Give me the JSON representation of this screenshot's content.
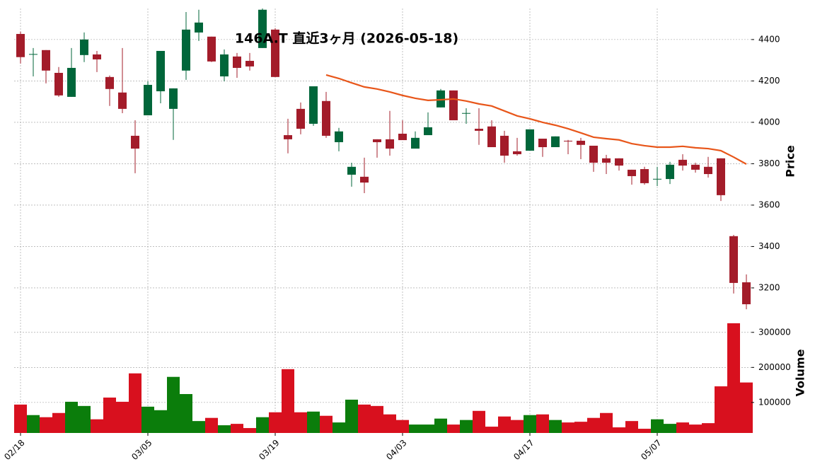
{
  "chart_data": {
    "type": "candlestick",
    "title": "146A.T 直近3ヶ月 (2026-05-18)",
    "categories": [
      "02/18",
      null,
      null,
      null,
      null,
      null,
      null,
      null,
      null,
      null,
      "03/05",
      null,
      null,
      null,
      null,
      null,
      null,
      null,
      null,
      null,
      "03/19",
      null,
      null,
      null,
      null,
      null,
      null,
      null,
      null,
      null,
      "04/03",
      null,
      null,
      null,
      null,
      null,
      null,
      null,
      null,
      null,
      "04/17",
      null,
      null,
      null,
      null,
      null,
      null,
      null,
      null,
      null,
      "05/07",
      null,
      null,
      null,
      null,
      null,
      null,
      null
    ],
    "open": [
      4427,
      4328,
      4349,
      4239,
      4123,
      4325,
      4328,
      4219,
      4144,
      3935,
      4034,
      4150,
      4065,
      4250,
      4434,
      4414,
      4222,
      4318,
      4297,
      4359,
      4448,
      3938,
      4065,
      3993,
      4103,
      3904,
      3747,
      3737,
      3918,
      3918,
      3945,
      3873,
      3938,
      4072,
      4154,
      4042,
      3969,
      3980,
      3935,
      3860,
      3863,
      3921,
      3880,
      3911,
      3911,
      3887,
      3826,
      3826,
      3771,
      3774,
      3726,
      3726,
      3819,
      3795,
      3785,
      3826,
      3450,
      3227
    ],
    "high": [
      4438,
      4359,
      4349,
      4267,
      4359,
      4434,
      4345,
      4226,
      4359,
      4010,
      4198,
      4345,
      4164,
      4533,
      4544,
      4414,
      4352,
      4335,
      4335,
      4550,
      4455,
      4017,
      4096,
      4174,
      4147,
      3973,
      3805,
      3829,
      3918,
      4055,
      4010,
      3956,
      4048,
      4161,
      4154,
      4068,
      4068,
      4010,
      3959,
      3925,
      3966,
      3921,
      3932,
      3915,
      3925,
      3887,
      3843,
      3826,
      3771,
      3785,
      3785,
      3809,
      3846,
      3805,
      3833,
      3826,
      3456,
      3265
    ],
    "low": [
      4284,
      4222,
      4188,
      4123,
      4123,
      4291,
      4243,
      4079,
      4044,
      3754,
      4034,
      4092,
      3915,
      4205,
      4393,
      4291,
      4198,
      4215,
      4250,
      4359,
      4219,
      3850,
      3942,
      3983,
      3925,
      3860,
      3689,
      3658,
      3829,
      3839,
      3914,
      3873,
      3938,
      4072,
      4010,
      3993,
      3891,
      3880,
      3805,
      3839,
      3863,
      3833,
      3880,
      3846,
      3822,
      3761,
      3750,
      3767,
      3699,
      3699,
      3692,
      3702,
      3767,
      3757,
      3733,
      3620,
      3173,
      3097
    ],
    "close": [
      4315,
      4330,
      4250,
      4130,
      4263,
      4400,
      4304,
      4161,
      4065,
      3873,
      4181,
      4345,
      4164,
      4448,
      4482,
      4294,
      4328,
      4263,
      4270,
      4544,
      4219,
      3918,
      3969,
      4174,
      3935,
      3956,
      3785,
      3709,
      3904,
      3873,
      3914,
      3925,
      3976,
      4154,
      4010,
      4045,
      3959,
      3880,
      3839,
      3846,
      3966,
      3880,
      3932,
      3908,
      3891,
      3805,
      3805,
      3791,
      3740,
      3706,
      3727,
      3795,
      3791,
      3771,
      3750,
      3648,
      3224,
      3121
    ],
    "up_color": "#00663a",
    "down_color": "#a31c2a",
    "ma_values": [
      null,
      null,
      null,
      null,
      null,
      null,
      null,
      null,
      null,
      null,
      null,
      null,
      null,
      null,
      null,
      null,
      null,
      null,
      null,
      null,
      null,
      null,
      null,
      null,
      4229,
      4212,
      4191,
      4171,
      4161,
      4147,
      4130,
      4116,
      4106,
      4109,
      4113,
      4103,
      4089,
      4079,
      4055,
      4031,
      4017,
      4000,
      3986,
      3969,
      3949,
      3928,
      3921,
      3915,
      3897,
      3887,
      3880,
      3880,
      3884,
      3877,
      3873,
      3863,
      3832,
      3798
    ],
    "ma_color": "#e8561a",
    "ylabel": "Price",
    "ylim": [
      3087,
      4550
    ],
    "yticks": [
      3200,
      3400,
      3600,
      3800,
      4000,
      4200,
      4400
    ],
    "grid": true,
    "volume": {
      "ylabel": "Volume",
      "values": [
        94000,
        64000,
        58000,
        70000,
        102000,
        90000,
        52000,
        114000,
        102000,
        183000,
        88000,
        78000,
        173000,
        124000,
        47000,
        56000,
        35000,
        39000,
        27000,
        58000,
        72000,
        195000,
        72000,
        74000,
        62000,
        43000,
        108000,
        94000,
        90000,
        66000,
        50000,
        37000,
        37000,
        54000,
        37000,
        50000,
        76000,
        31000,
        60000,
        50000,
        64000,
        66000,
        50000,
        43000,
        45000,
        56000,
        70000,
        29000,
        47000,
        25000,
        52000,
        39000,
        43000,
        37000,
        41000,
        146000,
        326000,
        157000
      ],
      "ylim": [
        13000,
        350000
      ],
      "yticks": [
        100000,
        200000,
        300000
      ],
      "up_color": "#0b7d0b",
      "down_color": "#d8101e"
    }
  }
}
